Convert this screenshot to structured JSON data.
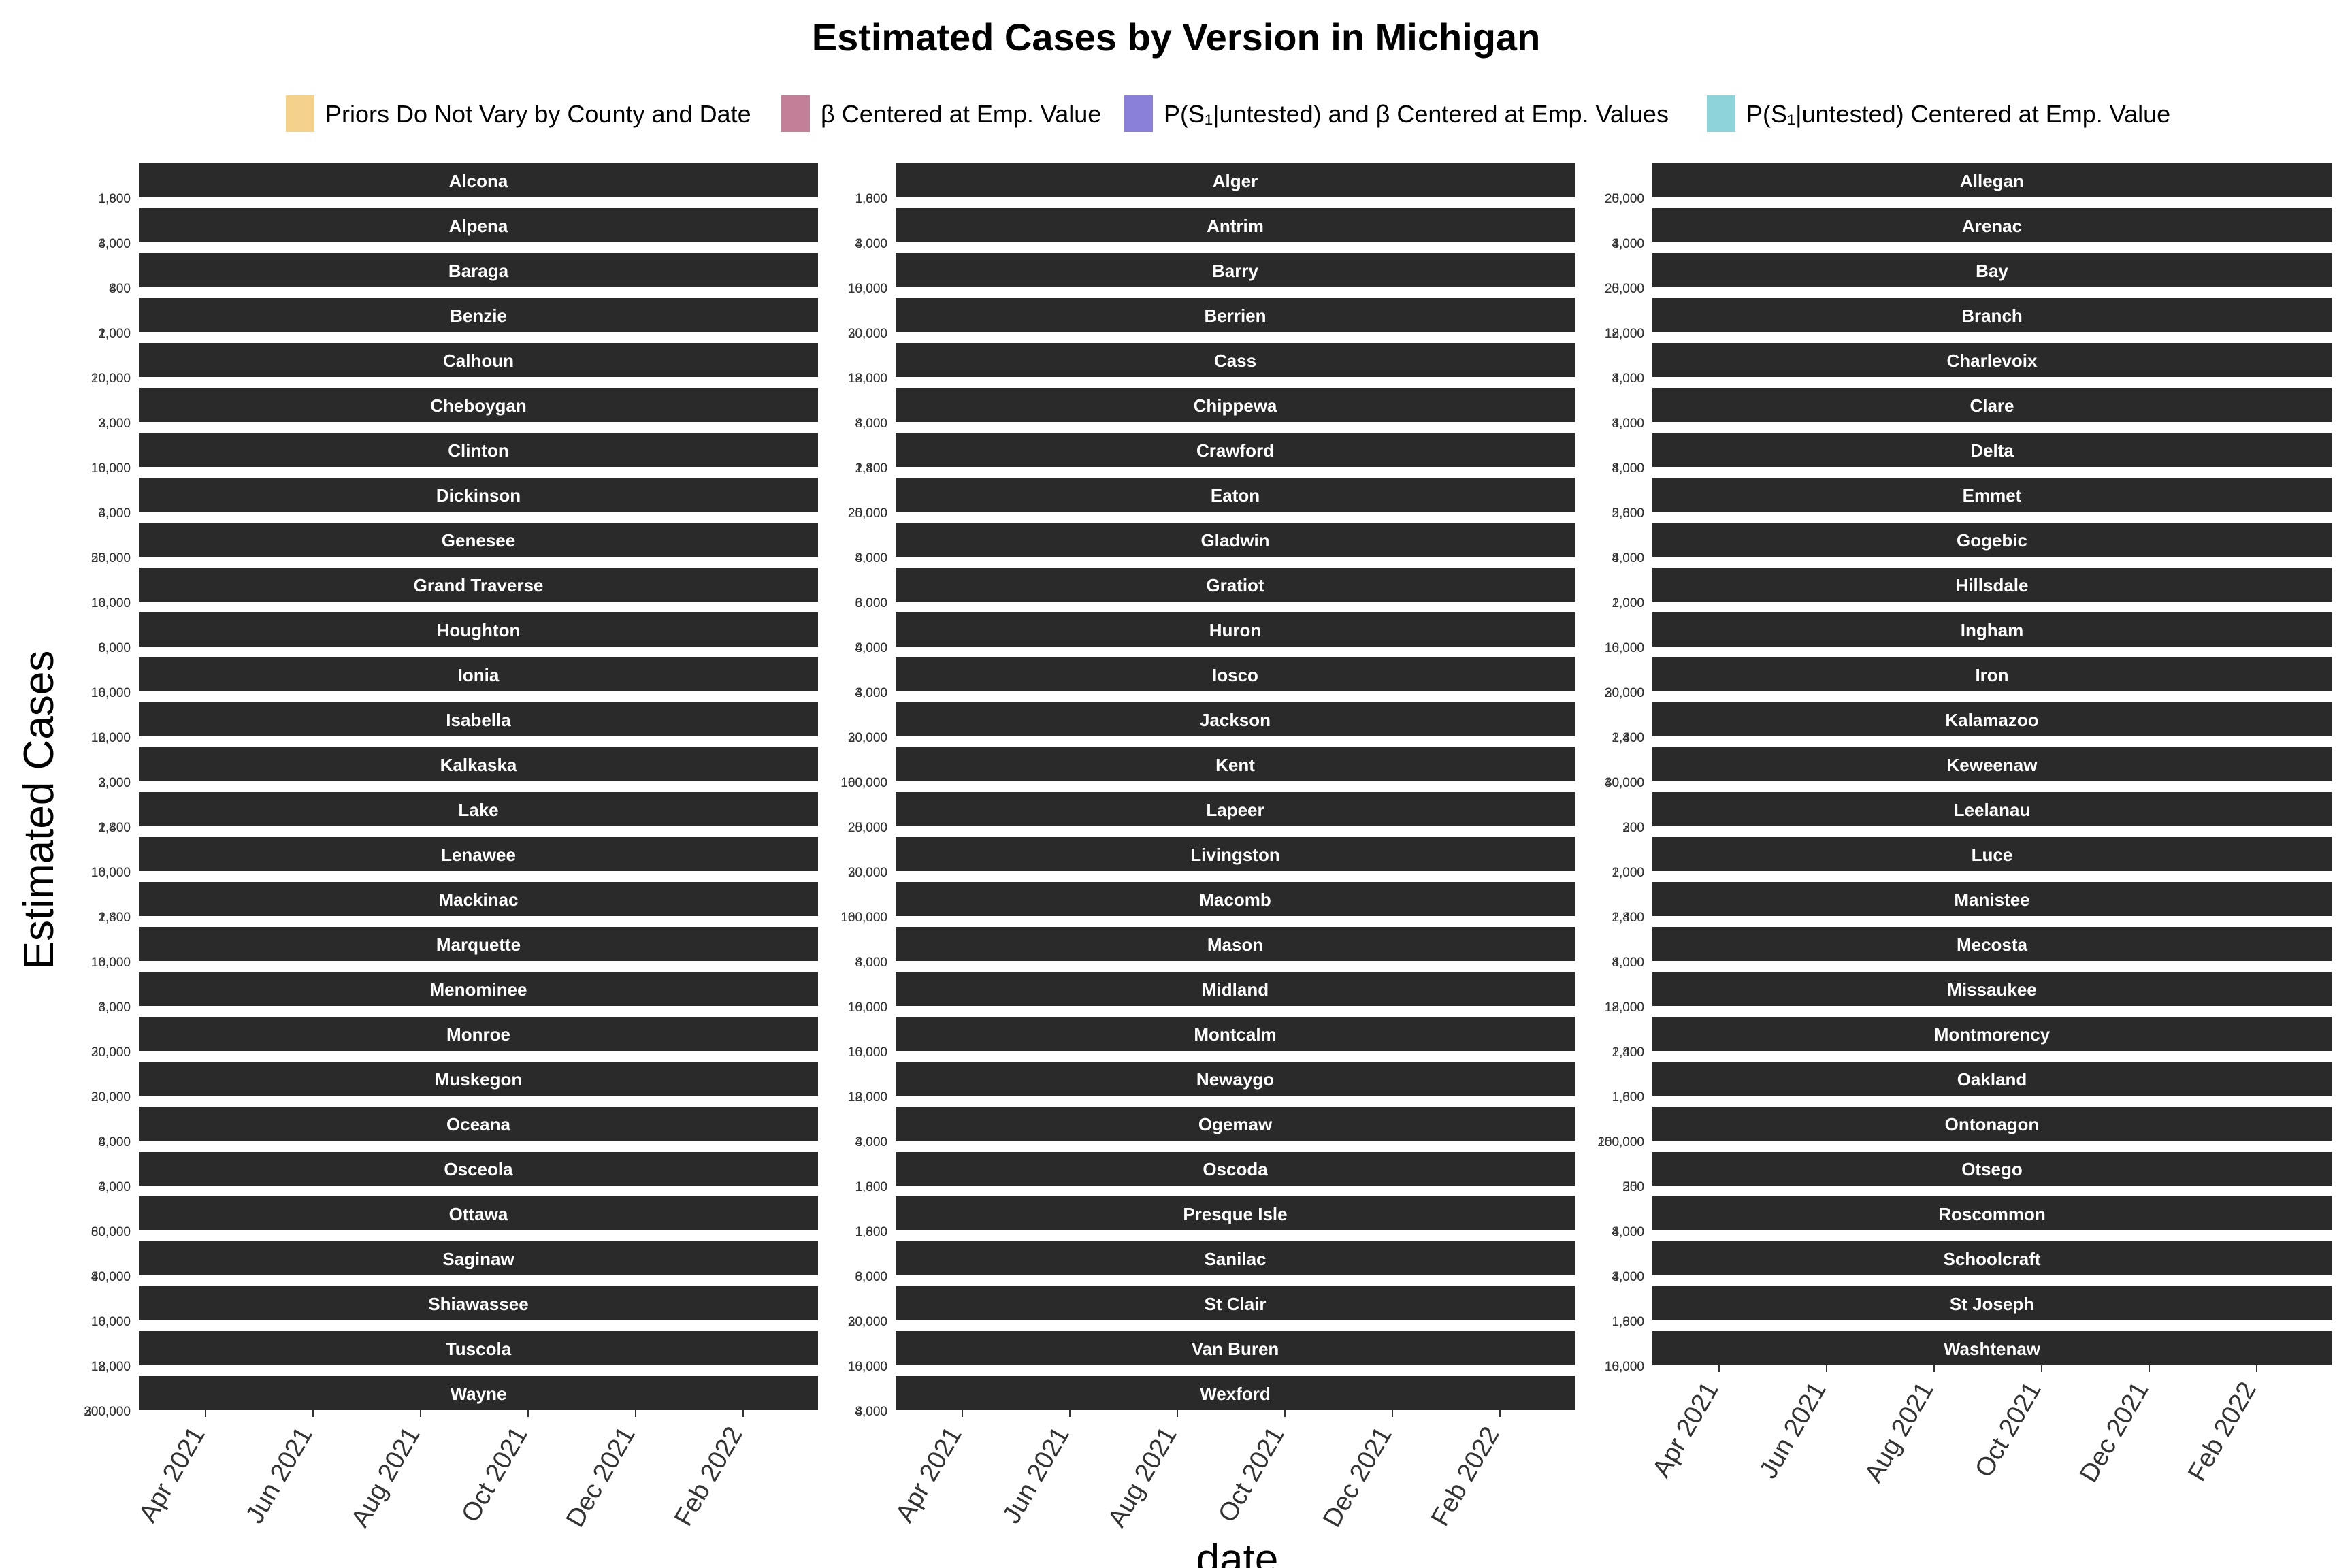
{
  "chart_data": {
    "type": "area",
    "title": "Estimated Cases by Version in Michigan",
    "xlabel": "date",
    "ylabel": "Estimated Cases",
    "x_tick_labels": [
      "Apr 2021",
      "Jun 2021",
      "Aug 2021",
      "Oct 2021",
      "Dec 2021",
      "Feb 2022"
    ],
    "legend_position": "top",
    "series": [
      {
        "name": "Priors Do Not Vary by County and Date",
        "color": "#F5D28C"
      },
      {
        "name": "β Centered at Emp. Value",
        "color": "#C27F98"
      },
      {
        "name": "P(S₁|untested) and β Centered at Emp. Values",
        "color": "#8A7FD9"
      },
      {
        "name": "P(S₁|untested) Centered at Emp. Value",
        "color": "#8ED3DA"
      }
    ],
    "panel_strip_color": "#2a2a2a",
    "columns": [
      [
        {
          "county": "Alcona",
          "y_labels": [
            "1,600",
            "800"
          ]
        },
        {
          "county": "Alpena",
          "y_labels": [
            "4,000",
            "3,000"
          ]
        },
        {
          "county": "Baraga",
          "y_labels": [
            "800",
            "400"
          ]
        },
        {
          "county": "Benzie",
          "y_labels": [
            "2,000",
            "1,000"
          ]
        },
        {
          "county": "Calhoun",
          "y_labels": [
            "20,000",
            "10,000"
          ]
        },
        {
          "county": "Cheboygan",
          "y_labels": [
            "3,000",
            "2,000"
          ]
        },
        {
          "county": "Clinton",
          "y_labels": [
            "16,000",
            "10,000"
          ]
        },
        {
          "county": "Dickinson",
          "y_labels": [
            "4,000",
            "3,000"
          ]
        },
        {
          "county": "Genesee",
          "y_labels": [
            "25,000",
            "50,000"
          ]
        },
        {
          "county": "Grand Traverse",
          "y_labels": [
            "16,000",
            "10,000"
          ]
        },
        {
          "county": "Houghton",
          "y_labels": [
            "8,000",
            "6,000"
          ]
        },
        {
          "county": "Ionia",
          "y_labels": [
            "16,000",
            "10,000"
          ]
        },
        {
          "county": "Isabella",
          "y_labels": [
            "16,000",
            "12,000"
          ]
        },
        {
          "county": "Kalkaska",
          "y_labels": [
            "3,000",
            "2,000"
          ]
        },
        {
          "county": "Lake",
          "y_labels": [
            "2,800",
            "1,400"
          ]
        },
        {
          "county": "Lenawee",
          "y_labels": [
            "16,000",
            "10,000"
          ]
        },
        {
          "county": "Mackinac",
          "y_labels": [
            "2,800",
            "1,400"
          ]
        },
        {
          "county": "Marquette",
          "y_labels": [
            "16,000",
            "10,000"
          ]
        },
        {
          "county": "Menominee",
          "y_labels": [
            "4,000",
            "3,000"
          ]
        },
        {
          "county": "Monroe",
          "y_labels": [
            "30,000",
            "20,000"
          ]
        },
        {
          "county": "Muskegon",
          "y_labels": [
            "30,000",
            "20,000"
          ]
        },
        {
          "county": "Oceana",
          "y_labels": [
            "8,000",
            "4,000"
          ]
        },
        {
          "county": "Osceola",
          "y_labels": [
            "4,000",
            "3,000"
          ]
        },
        {
          "county": "Ottawa",
          "y_labels": [
            "80,000",
            "60,000"
          ]
        },
        {
          "county": "Saginaw",
          "y_labels": [
            "80,000",
            "40,000"
          ]
        },
        {
          "county": "Shiawassee",
          "y_labels": [
            "16,000",
            "10,000"
          ]
        },
        {
          "county": "Tuscola",
          "y_labels": [
            "18,000",
            "12,000"
          ]
        },
        {
          "county": "Wayne",
          "y_labels": [
            "300,000",
            "200,000"
          ]
        }
      ],
      [
        {
          "county": "Alger",
          "y_labels": [
            "1,600",
            "800"
          ]
        },
        {
          "county": "Antrim",
          "y_labels": [
            "4,000",
            "3,000"
          ]
        },
        {
          "county": "Barry",
          "y_labels": [
            "16,000",
            "10,000"
          ]
        },
        {
          "county": "Berrien",
          "y_labels": [
            "30,000",
            "20,000"
          ]
        },
        {
          "county": "Cass",
          "y_labels": [
            "12,000",
            "18,000"
          ]
        },
        {
          "county": "Chippewa",
          "y_labels": [
            "8,000",
            "4,000"
          ]
        },
        {
          "county": "Crawford",
          "y_labels": [
            "2,800",
            "1,400"
          ]
        },
        {
          "county": "Eaton",
          "y_labels": [
            "20,000",
            "25,000"
          ]
        },
        {
          "county": "Gladwin",
          "y_labels": [
            "8,000",
            "4,000"
          ]
        },
        {
          "county": "Gratiot",
          "y_labels": [
            "8,000",
            "6,000"
          ]
        },
        {
          "county": "Huron",
          "y_labels": [
            "8,000",
            "4,000"
          ]
        },
        {
          "county": "Iosco",
          "y_labels": [
            "4,000",
            "3,000"
          ]
        },
        {
          "county": "Jackson",
          "y_labels": [
            "30,000",
            "20,000"
          ]
        },
        {
          "county": "Kent",
          "y_labels": [
            "160,000",
            "100,000"
          ]
        },
        {
          "county": "Lapeer",
          "y_labels": [
            "25,000",
            "20,000"
          ]
        },
        {
          "county": "Livingston",
          "y_labels": [
            "30,000",
            "20,000"
          ]
        },
        {
          "county": "Macomb",
          "y_labels": [
            "160,000",
            "100,000"
          ]
        },
        {
          "county": "Mason",
          "y_labels": [
            "8,000",
            "4,000"
          ]
        },
        {
          "county": "Midland",
          "y_labels": [
            "16,000",
            "10,000"
          ]
        },
        {
          "county": "Montcalm",
          "y_labels": [
            "16,000",
            "10,000"
          ]
        },
        {
          "county": "Newaygo",
          "y_labels": [
            "12,000",
            "18,000"
          ]
        },
        {
          "county": "Ogemaw",
          "y_labels": [
            "4,000",
            "3,000"
          ]
        },
        {
          "county": "Oscoda",
          "y_labels": [
            "1,600",
            "800"
          ]
        },
        {
          "county": "Presque Isle",
          "y_labels": [
            "1,600",
            "800"
          ]
        },
        {
          "county": "Sanilac",
          "y_labels": [
            "8,000",
            "6,000"
          ]
        },
        {
          "county": "St Clair",
          "y_labels": [
            "30,000",
            "20,000"
          ]
        },
        {
          "county": "Van Buren",
          "y_labels": [
            "16,000",
            "10,000"
          ]
        },
        {
          "county": "Wexford",
          "y_labels": [
            "8,000",
            "4,000"
          ]
        }
      ],
      [
        {
          "county": "Allegan",
          "y_labels": [
            "25,000",
            "20,000"
          ]
        },
        {
          "county": "Arenac",
          "y_labels": [
            "4,000",
            "3,000"
          ]
        },
        {
          "county": "Bay",
          "y_labels": [
            "25,000",
            "20,000"
          ]
        },
        {
          "county": "Branch",
          "y_labels": [
            "12,000",
            "18,000"
          ]
        },
        {
          "county": "Charlevoix",
          "y_labels": [
            "4,000",
            "3,000"
          ]
        },
        {
          "county": "Clare",
          "y_labels": [
            "4,000",
            "3,000"
          ]
        },
        {
          "county": "Delta",
          "y_labels": [
            "8,000",
            "4,000"
          ]
        },
        {
          "county": "Emmet",
          "y_labels": [
            "5,600",
            "2,800"
          ]
        },
        {
          "county": "Gogebic",
          "y_labels": [
            "8,000",
            "4,000"
          ]
        },
        {
          "county": "Hillsdale",
          "y_labels": [
            "2,000",
            "1,000"
          ]
        },
        {
          "county": "Ingham",
          "y_labels": [
            "16,000",
            "10,000"
          ]
        },
        {
          "county": "Iron",
          "y_labels": [
            "30,000",
            "20,000"
          ]
        },
        {
          "county": "Kalamazoo",
          "y_labels": [
            "2,800",
            "1,400"
          ]
        },
        {
          "county": "Keweenaw",
          "y_labels": [
            "40,000",
            "30,000"
          ]
        },
        {
          "county": "Leelanau",
          "y_labels": [
            "300",
            "200"
          ]
        },
        {
          "county": "Luce",
          "y_labels": [
            "2,000",
            "1,000"
          ]
        },
        {
          "county": "Manistee",
          "y_labels": [
            "2,800",
            "1,400"
          ]
        },
        {
          "county": "Mecosta",
          "y_labels": [
            "8,000",
            "4,000"
          ]
        },
        {
          "county": "Missaukee",
          "y_labels": [
            "12,000",
            "18,000"
          ]
        },
        {
          "county": "Montmorency",
          "y_labels": [
            "2,800",
            "1,400"
          ]
        },
        {
          "county": "Oakland",
          "y_labels": [
            "1,600",
            "800"
          ]
        },
        {
          "county": "Ontonagon",
          "y_labels": [
            "200,000",
            "150,000"
          ]
        },
        {
          "county": "Otsego",
          "y_labels": [
            "500",
            "250"
          ]
        },
        {
          "county": "Roscommon",
          "y_labels": [
            "8,000",
            "4,000"
          ]
        },
        {
          "county": "Schoolcraft",
          "y_labels": [
            "4,000",
            "3,000"
          ]
        },
        {
          "county": "St Joseph",
          "y_labels": [
            "1,600",
            "800"
          ]
        },
        {
          "county": "Washtenaw",
          "y_labels": [
            "16,000",
            "10,000"
          ]
        }
      ]
    ]
  }
}
